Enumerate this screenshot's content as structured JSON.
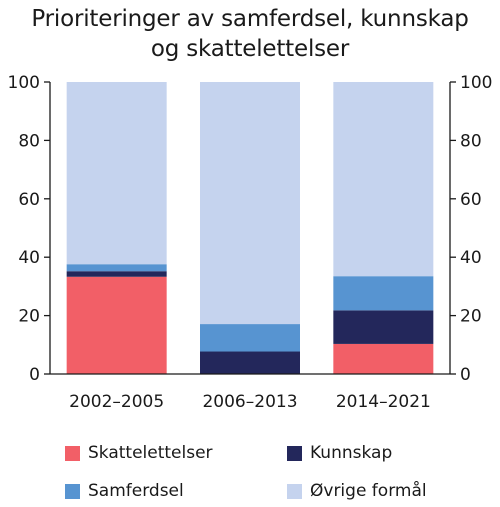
{
  "chart_data": {
    "type": "bar",
    "stacked": true,
    "title_lines": [
      "Prioriteringer av samferdsel, kunnskap",
      "og skattelettelser"
    ],
    "categories": [
      "2002–2005",
      "2006–2013",
      "2014–2021"
    ],
    "ylim": [
      0,
      100
    ],
    "yticks": [
      0,
      20,
      40,
      60,
      80,
      100
    ],
    "ytick_labels": [
      "0",
      "20",
      "40",
      "60",
      "80",
      "100"
    ],
    "dual_y_axis": true,
    "grid": false,
    "legend_position": "bottom",
    "series": [
      {
        "name": "Skattelettelser",
        "color": "#f25f67",
        "values": [
          33.3,
          0,
          10.3
        ]
      },
      {
        "name": "Kunnskap",
        "color": "#23275b",
        "values": [
          1.9,
          7.7,
          11.5
        ]
      },
      {
        "name": "Samferdsel",
        "color": "#5794d1",
        "values": [
          2.4,
          9.4,
          11.7
        ]
      },
      {
        "name": "Øvrige formål",
        "color": "#c5d3ee",
        "values": [
          62.4,
          82.9,
          66.5
        ]
      }
    ],
    "legend_order": [
      0,
      1,
      2,
      3
    ]
  }
}
